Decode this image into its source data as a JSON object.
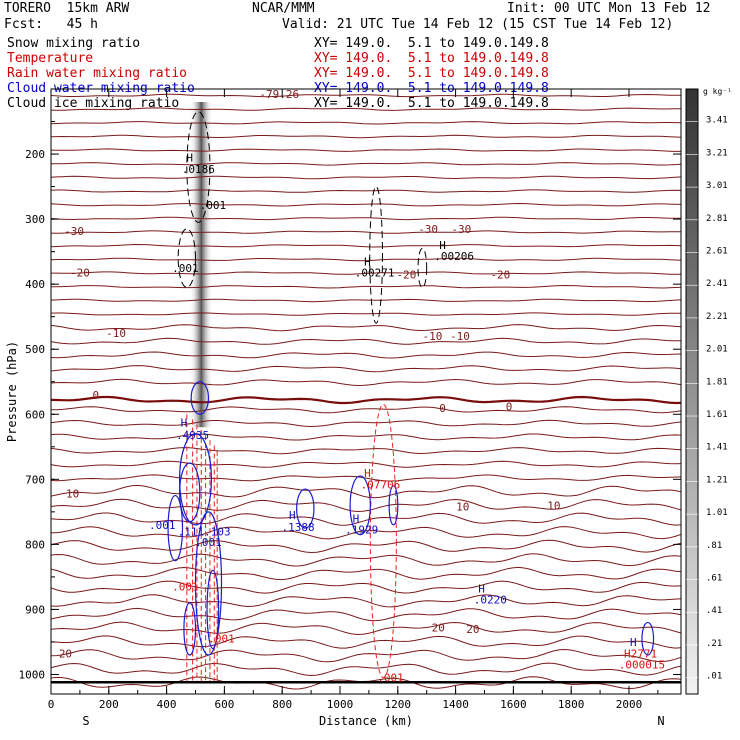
{
  "header": {
    "model": "TORERO  15km ARW",
    "org": "NCAR/MMM",
    "init": "Init: 00 UTC Mon 13 Feb 12",
    "fcst": "Fcst:   45 h",
    "valid": "Valid: 21 UTC Tue 14 Feb 12 (15 CST Tue 14 Feb 12)"
  },
  "fields": [
    {
      "name": "Snow mixing ratio",
      "xs": "",
      "color": "#000000"
    },
    {
      "name": "Temperature",
      "xs": "XY= 149.0.  5.1 to 149.0.149.8",
      "color": "#cc0000"
    },
    {
      "name": "Rain water mixing ratio",
      "xs": "XY= 149.0.  5.1 to 149.0.149.8",
      "color": "#cc0000"
    },
    {
      "name": "Cloud water mixing ratio",
      "xs": "XY= 149.0.  5.1 to 149.0.149.8",
      "color": "#0000cc"
    },
    {
      "name": "Cloud ice mixing ratio",
      "xs": "XY= 149.0.  5.1 to 149.0.149.8",
      "color": "#000000"
    }
  ],
  "snow_xs": "XY= 149.0.  5.1 to 149.0.149.8",
  "colors": {
    "temperature": "#7a1a1a",
    "temperature_zero": "#7a0c0c",
    "rain": "#ee2222",
    "cloud_water": "#1a1ad0",
    "cloud_ice": "#000000",
    "rain_label": "#dd1111",
    "cloud_water_label": "#1010c0"
  },
  "chart_data": {
    "type": "cross-section",
    "xlabel": "Distance (km)",
    "ylabel": "Pressure (hPa)",
    "xlim": [
      0,
      2180
    ],
    "ylim": [
      1030,
      100
    ],
    "x_ticks": [
      0,
      200,
      400,
      600,
      800,
      1000,
      1200,
      1400,
      1600,
      1800,
      2000
    ],
    "y_ticks": [
      200,
      300,
      400,
      500,
      600,
      700,
      800,
      900,
      1000
    ],
    "x_end_labels": {
      "left": "S",
      "right": "N"
    },
    "colorbar_unit": "g kg⁻¹",
    "colorbar_ticks": [
      "3.41",
      "3.21",
      "3.01",
      "2.81",
      "2.61",
      "2.41",
      "2.21",
      "2.01",
      "1.81",
      "1.61",
      "1.41",
      "1.21",
      "1.01",
      ".81",
      ".61",
      ".41",
      ".21",
      ".01"
    ],
    "temperature_labels": [
      {
        "text": "-79.26",
        "x": 790,
        "p": 108
      },
      {
        "text": "-30",
        "x": 80,
        "p": 318
      },
      {
        "text": "-30",
        "x": 1305,
        "p": 315
      },
      {
        "text": "-30",
        "x": 1420,
        "p": 315
      },
      {
        "text": "-20",
        "x": 100,
        "p": 382
      },
      {
        "text": "-20",
        "x": 1230,
        "p": 385
      },
      {
        "text": "-20",
        "x": 1555,
        "p": 385
      },
      {
        "text": "-10",
        "x": 225,
        "p": 475
      },
      {
        "text": "-10",
        "x": 1320,
        "p": 480
      },
      {
        "text": "-10",
        "x": 1415,
        "p": 480
      },
      {
        "text": "0",
        "x": 155,
        "p": 570
      },
      {
        "text": "0",
        "x": 1355,
        "p": 590
      },
      {
        "text": "0",
        "x": 1585,
        "p": 588
      },
      {
        "text": "10",
        "x": 75,
        "p": 722
      },
      {
        "text": "10",
        "x": 1425,
        "p": 742
      },
      {
        "text": "10",
        "x": 1740,
        "p": 740
      },
      {
        "text": "20",
        "x": 1340,
        "p": 928
      },
      {
        "text": "20",
        "x": 1460,
        "p": 930
      },
      {
        "text": "20",
        "x": 50,
        "p": 968
      }
    ],
    "extrema_labels": [
      {
        "field": "cloud_ice",
        "text": "H",
        "x": 480,
        "p": 205
      },
      {
        "field": "cloud_ice",
        "text": ".0186",
        "x": 510,
        "p": 223
      },
      {
        "field": "cloud_ice",
        "text": ".001",
        "x": 560,
        "p": 278
      },
      {
        "field": "cloud_ice",
        "text": ".001",
        "x": 465,
        "p": 375
      },
      {
        "field": "cloud_ice",
        "text": "H",
        "x": 1095,
        "p": 365
      },
      {
        "field": "cloud_ice",
        "text": ".00271",
        "x": 1120,
        "p": 382
      },
      {
        "field": "cloud_ice",
        "text": "H",
        "x": 1355,
        "p": 340
      },
      {
        "field": "cloud_ice",
        "text": ".00206",
        "x": 1395,
        "p": 357
      },
      {
        "field": "cloud_water",
        "text": "H",
        "x": 460,
        "p": 613
      },
      {
        "field": "cloud_water",
        "text": ".4935",
        "x": 490,
        "p": 632
      },
      {
        "field": "cloud_water",
        "text": ".001",
        "x": 385,
        "p": 770
      },
      {
        "field": "cloud_water",
        "text": ".111.103",
        "x": 530,
        "p": 780
      },
      {
        "field": "cloud_water",
        "text": ".001",
        "x": 545,
        "p": 796
      },
      {
        "field": "cloud_water",
        "text": "H",
        "x": 835,
        "p": 755
      },
      {
        "field": "cloud_water",
        "text": ".1388",
        "x": 855,
        "p": 773
      },
      {
        "field": "cloud_water",
        "text": "H",
        "x": 1055,
        "p": 760
      },
      {
        "field": "cloud_water",
        "text": ".1929",
        "x": 1075,
        "p": 777
      },
      {
        "field": "cloud_water",
        "text": "H",
        "x": 1490,
        "p": 868
      },
      {
        "field": "cloud_water",
        "text": ".0220",
        "x": 1520,
        "p": 885
      },
      {
        "field": "cloud_water",
        "text": "H",
        "x": 2015,
        "p": 950
      },
      {
        "field": "rain",
        "text": "H",
        "x": 1095,
        "p": 690
      },
      {
        "field": "rain",
        "text": ".07706",
        "x": 1140,
        "p": 708
      },
      {
        "field": "rain",
        "text": ".001",
        "x": 465,
        "p": 865
      },
      {
        "field": "rain",
        "text": ".001",
        "x": 590,
        "p": 945
      },
      {
        "field": "rain",
        "text": "H2771",
        "x": 2040,
        "p": 968
      },
      {
        "field": "rain",
        "text": ".000015",
        "x": 2045,
        "p": 985
      },
      {
        "field": "rain",
        "text": ".001",
        "x": 1175,
        "p": 1005
      }
    ]
  }
}
